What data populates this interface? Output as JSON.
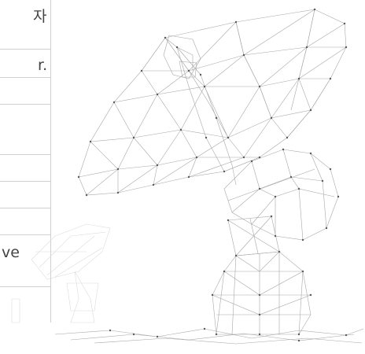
{
  "fragments": {
    "text1": "자",
    "text2": "r.",
    "text3": "ve"
  },
  "artwork": {
    "description_icon": "satellite-dish-wireframe-icon",
    "stroke_color": "#9e9e9e",
    "node_color": "#5a5a5a",
    "faded_color": "#cfcfcf"
  }
}
